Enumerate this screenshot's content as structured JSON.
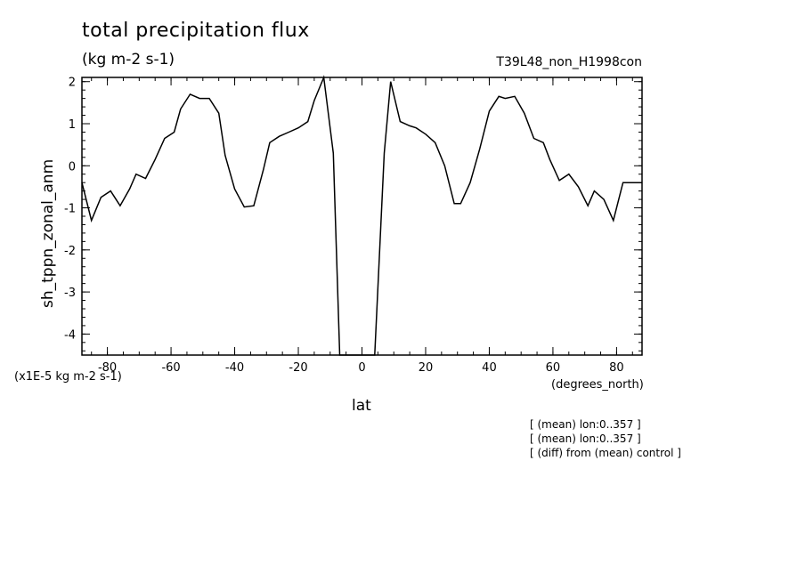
{
  "chart_data": {
    "type": "line",
    "title": "total precipitation flux",
    "subtitle": "(kg m-2 s-1)",
    "run_label": "T39L48_non_H1998con",
    "ylabel": "sh_tppn_zonal_anm",
    "xlabel": "lat",
    "x_unit": "(degrees_north)",
    "y_scale_label": "(x1E-5 kg m-2 s-1)",
    "xlim": [
      -88,
      88
    ],
    "ylim": [
      -4.5,
      2.1
    ],
    "x_ticks": [
      -80,
      -60,
      -40,
      -20,
      0,
      20,
      40,
      60,
      80
    ],
    "x_tick_labels": [
      "-80",
      "-60",
      "-40",
      "-20",
      "0",
      "20",
      "40",
      "60",
      "80"
    ],
    "y_ticks": [
      -4,
      -3,
      -2,
      -1,
      0,
      1,
      2
    ],
    "y_tick_labels": [
      "-4",
      "-3",
      "-2",
      "-1",
      "0",
      "1",
      "2"
    ],
    "grid": false,
    "series": [
      {
        "x": [
          -88,
          -85,
          -82,
          -79,
          -76,
          -73,
          -71,
          -68,
          -65,
          -62,
          -59,
          -57,
          -54,
          -51,
          -48,
          -45,
          -43,
          -40,
          -37,
          -34,
          -31,
          -29,
          -26,
          -23,
          -20,
          -17,
          -15,
          -12,
          -9,
          -7,
          -4,
          -1,
          1,
          4,
          7,
          9,
          12,
          15,
          17,
          20,
          23,
          26,
          29,
          31,
          34,
          37,
          40,
          43,
          45,
          48,
          51,
          54,
          57,
          59,
          62,
          65,
          68,
          71,
          73,
          76,
          79,
          82,
          85,
          88
        ],
        "values": [
          -0.4,
          -1.3,
          -0.75,
          -0.6,
          -0.95,
          -0.55,
          -0.2,
          -0.3,
          0.15,
          0.65,
          0.8,
          1.35,
          1.7,
          1.6,
          1.6,
          1.25,
          0.25,
          -0.55,
          -0.98,
          -0.95,
          -0.1,
          0.55,
          0.7,
          0.8,
          0.9,
          1.05,
          1.55,
          2.1,
          0.3,
          -4.5,
          -4.6,
          -4.6,
          -4.6,
          -4.5,
          0.3,
          2.0,
          1.05,
          0.95,
          0.9,
          0.75,
          0.55,
          0.0,
          -0.9,
          -0.9,
          -0.4,
          0.4,
          1.3,
          1.65,
          1.6,
          1.65,
          1.25,
          0.65,
          0.55,
          0.15,
          -0.35,
          -0.2,
          -0.5,
          -0.95,
          -0.6,
          -0.8,
          -1.3,
          -0.4,
          -0.4,
          -0.4
        ]
      }
    ]
  },
  "notes": [
    "[ (mean) lon:0..357 ]",
    "[ (mean) lon:0..357 ]",
    "[ (diff) from (mean) control ]"
  ]
}
